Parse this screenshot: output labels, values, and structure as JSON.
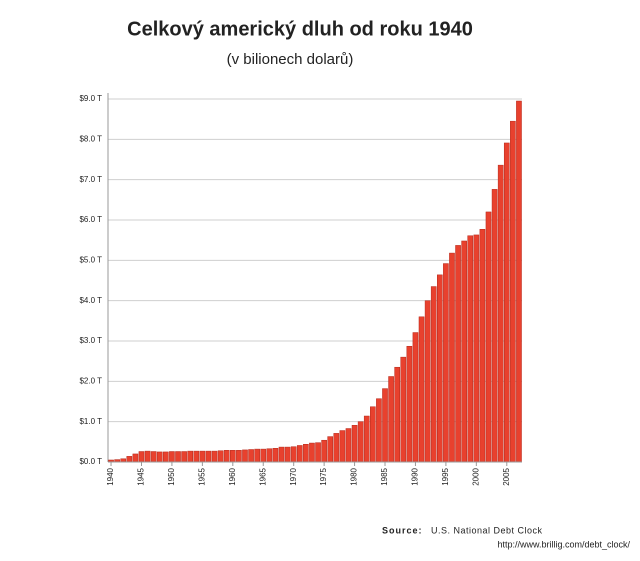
{
  "chart_data": {
    "type": "bar",
    "title": "Celkový americký dluh od roku 1940",
    "subtitle": "(v bilionech dolarů)",
    "source_label": "Source:",
    "source": "U.S. National Debt Clock",
    "source_url": "http://www.brillig.com/debt_clock/",
    "color": "#e8412e",
    "grid": true,
    "ylim": [
      0,
      9
    ],
    "yticks": [
      {
        "value": 0,
        "label": "$0.0 T"
      },
      {
        "value": 1,
        "label": "$1.0 T"
      },
      {
        "value": 2,
        "label": "$2.0 T"
      },
      {
        "value": 3,
        "label": "$3.0 T"
      },
      {
        "value": 4,
        "label": "$4.0 T"
      },
      {
        "value": 5,
        "label": "$5.0 T"
      },
      {
        "value": 6,
        "label": "$6.0 T"
      },
      {
        "value": 7,
        "label": "$7.0 T"
      },
      {
        "value": 8,
        "label": "$8.0 T"
      },
      {
        "value": 9,
        "label": "$9.0 T"
      }
    ],
    "categories": [
      "1940",
      null,
      null,
      null,
      null,
      "1945",
      null,
      null,
      null,
      null,
      "1950",
      null,
      null,
      null,
      null,
      "1955",
      null,
      null,
      null,
      null,
      "1960",
      null,
      null,
      null,
      null,
      "1965",
      null,
      null,
      null,
      null,
      "1970",
      null,
      null,
      null,
      null,
      "1975",
      null,
      null,
      null,
      null,
      "1980",
      null,
      null,
      null,
      null,
      "1985",
      null,
      null,
      null,
      null,
      "1990",
      null,
      null,
      null,
      null,
      "1995",
      null,
      null,
      null,
      null,
      "2000",
      null,
      null,
      null,
      null,
      "2005",
      null,
      null
    ],
    "values": [
      0.05,
      0.06,
      0.08,
      0.14,
      0.2,
      0.26,
      0.27,
      0.26,
      0.25,
      0.25,
      0.26,
      0.26,
      0.26,
      0.27,
      0.27,
      0.27,
      0.27,
      0.27,
      0.28,
      0.29,
      0.29,
      0.29,
      0.3,
      0.31,
      0.32,
      0.32,
      0.33,
      0.34,
      0.37,
      0.37,
      0.38,
      0.41,
      0.44,
      0.47,
      0.48,
      0.54,
      0.63,
      0.71,
      0.78,
      0.83,
      0.91,
      1.0,
      1.14,
      1.37,
      1.57,
      1.82,
      2.12,
      2.35,
      2.6,
      2.87,
      3.21,
      3.6,
      4.0,
      4.35,
      4.64,
      4.92,
      5.18,
      5.37,
      5.48,
      5.61,
      5.63,
      5.77,
      6.2,
      6.76,
      7.36,
      7.91,
      8.45,
      8.95
    ]
  }
}
